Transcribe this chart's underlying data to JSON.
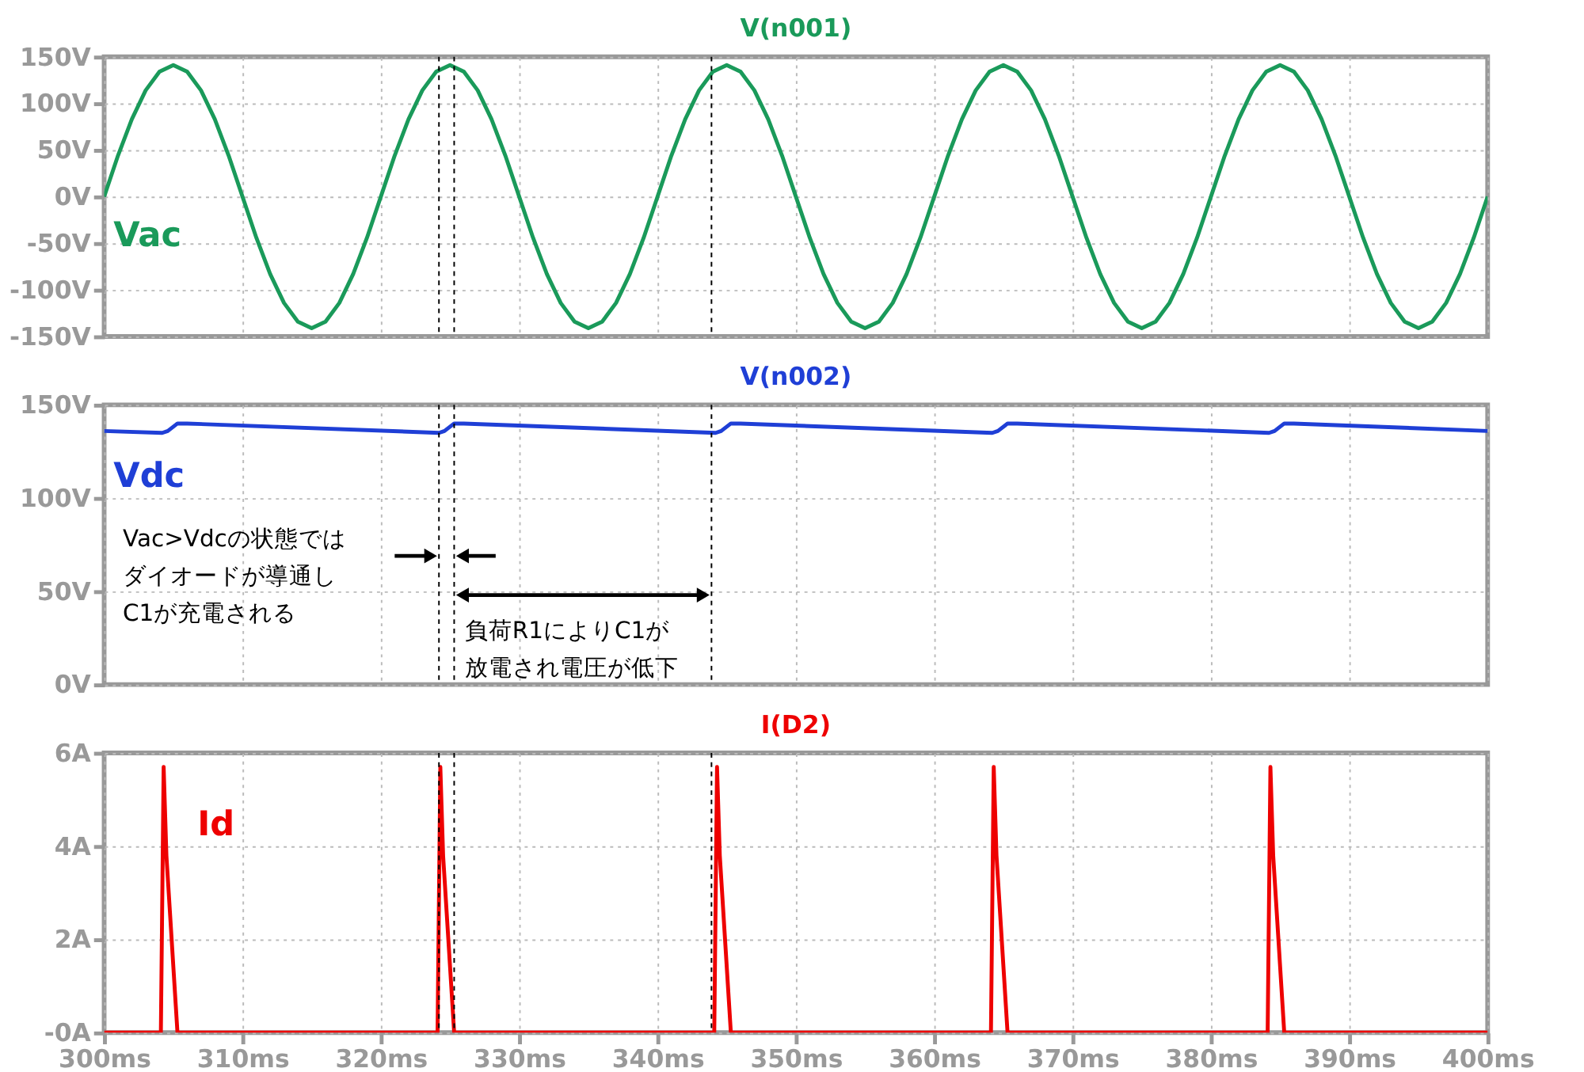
{
  "chart_data": [
    {
      "type": "line",
      "title": "V(n001)",
      "xlim": [
        300,
        400
      ],
      "ylim": [
        -150,
        150
      ],
      "grid": true,
      "tick_labels": "y",
      "xticks": [
        300,
        310,
        320,
        330,
        340,
        350,
        360,
        370,
        380,
        390,
        400
      ],
      "yticks": [
        {
          "value": 150,
          "label": "150V"
        },
        {
          "value": 100,
          "label": "100V"
        },
        {
          "value": 50,
          "label": "50V"
        },
        {
          "value": 0,
          "label": "0V"
        },
        {
          "value": -50,
          "label": "-50V"
        },
        {
          "value": -100,
          "label": "-100V"
        },
        {
          "value": -150,
          "label": "-150V"
        }
      ],
      "ref_lines": [
        {
          "axis": "x",
          "value": 324.2,
          "color": "#000000",
          "line_style": "dashed"
        },
        {
          "axis": "x",
          "value": 325.3,
          "color": "#000000",
          "line_style": "dashed"
        },
        {
          "axis": "x",
          "value": 343.9,
          "color": "#000000",
          "line_style": "dashed"
        }
      ],
      "series": [
        {
          "name": "Vac",
          "color": "#1a9a5a",
          "x": [
            300,
            301,
            302,
            303,
            304,
            305,
            306,
            307,
            308,
            309,
            310,
            311,
            312,
            313,
            314,
            315,
            316,
            317,
            318,
            319,
            320,
            321,
            322,
            323,
            324,
            325,
            326,
            327,
            328,
            329,
            330,
            331,
            332,
            333,
            334,
            335,
            336,
            337,
            338,
            339,
            340,
            341,
            342,
            343,
            344,
            345,
            346,
            347,
            348,
            349,
            350,
            351,
            352,
            353,
            354,
            355,
            356,
            357,
            358,
            359,
            360,
            361,
            362,
            363,
            364,
            365,
            366,
            367,
            368,
            369,
            370,
            371,
            372,
            373,
            374,
            375,
            376,
            377,
            378,
            379,
            380,
            381,
            382,
            383,
            384,
            385,
            386,
            387,
            388,
            389,
            390,
            391,
            392,
            393,
            394,
            395,
            396,
            397,
            398,
            399,
            400
          ],
          "values": [
            0,
            44,
            83,
            114,
            134,
            141,
            134,
            114,
            83,
            44,
            0,
            -44,
            -83,
            -114,
            -134,
            -141,
            -134,
            -114,
            -83,
            -44,
            0,
            44,
            83,
            114,
            134,
            141,
            134,
            114,
            83,
            44,
            0,
            -44,
            -83,
            -114,
            -134,
            -141,
            -134,
            -114,
            -83,
            -44,
            0,
            44,
            83,
            114,
            134,
            141,
            134,
            114,
            83,
            44,
            0,
            -44,
            -83,
            -114,
            -134,
            -141,
            -134,
            -114,
            -83,
            -44,
            0,
            44,
            83,
            114,
            134,
            141,
            134,
            114,
            83,
            44,
            0,
            -44,
            -83,
            -114,
            -134,
            -141,
            -134,
            -114,
            -83,
            -44,
            0,
            44,
            83,
            114,
            134,
            141,
            134,
            114,
            83,
            44,
            0,
            -44,
            -83,
            -114,
            -134,
            -141,
            -134,
            -114,
            -83,
            -44,
            0
          ]
        }
      ]
    },
    {
      "type": "line",
      "title": "V(n002)",
      "xlim": [
        300,
        400
      ],
      "ylim": [
        0,
        150
      ],
      "grid": true,
      "tick_labels": "y",
      "xticks": [
        300,
        310,
        320,
        330,
        340,
        350,
        360,
        370,
        380,
        390,
        400
      ],
      "yticks": [
        {
          "value": 150,
          "label": "150V"
        },
        {
          "value": 100,
          "label": "100V"
        },
        {
          "value": 50,
          "label": "50V"
        },
        {
          "value": 0,
          "label": "0V"
        }
      ],
      "ref_lines": [
        {
          "axis": "x",
          "value": 324.2,
          "color": "#000000",
          "line_style": "dashed"
        },
        {
          "axis": "x",
          "value": 325.3,
          "color": "#000000",
          "line_style": "dashed"
        },
        {
          "axis": "x",
          "value": 343.9,
          "color": "#000000",
          "line_style": "dashed"
        }
      ],
      "annotations": [
        "Vac>Vdcの状態ではダイオードが導通しC1が充電される",
        "負荷R1によりC1が放電され電圧が低下"
      ],
      "series": [
        {
          "name": "Vdc",
          "color": "#1f3fd6",
          "x": [
            300,
            304.2,
            304.6,
            305.3,
            306,
            324.2,
            324.6,
            325.3,
            326,
            344.2,
            344.6,
            345.3,
            346,
            364.2,
            364.6,
            365.3,
            366,
            384.2,
            384.6,
            385.3,
            386,
            400
          ],
          "values": [
            136,
            135,
            136,
            140,
            140,
            135,
            136,
            140,
            140,
            135,
            136,
            140,
            140,
            135,
            136,
            140,
            140,
            135,
            136,
            140,
            140,
            136
          ]
        }
      ]
    },
    {
      "type": "line",
      "title": "I(D2)",
      "xlim": [
        300,
        400
      ],
      "ylim": [
        0,
        6
      ],
      "grid": true,
      "xticks": [
        {
          "value": 300,
          "label": "300ms"
        },
        {
          "value": 310,
          "label": "310ms"
        },
        {
          "value": 320,
          "label": "320ms"
        },
        {
          "value": 330,
          "label": "330ms"
        },
        {
          "value": 340,
          "label": "340ms"
        },
        {
          "value": 350,
          "label": "350ms"
        },
        {
          "value": 360,
          "label": "360ms"
        },
        {
          "value": 370,
          "label": "370ms"
        },
        {
          "value": 380,
          "label": "380ms"
        },
        {
          "value": 390,
          "label": "390ms"
        },
        {
          "value": 400,
          "label": "400ms"
        }
      ],
      "yticks": [
        {
          "value": 6,
          "label": "6A"
        },
        {
          "value": 4,
          "label": "4A"
        },
        {
          "value": 2,
          "label": "2A"
        },
        {
          "value": 0,
          "label": "-0A"
        }
      ],
      "ref_lines": [
        {
          "axis": "x",
          "value": 324.2,
          "color": "#000000",
          "line_style": "dashed"
        },
        {
          "axis": "x",
          "value": 325.3,
          "color": "#000000",
          "line_style": "dashed"
        },
        {
          "axis": "x",
          "value": 343.9,
          "color": "#000000",
          "line_style": "dashed"
        }
      ],
      "series": [
        {
          "name": "Id",
          "color": "#ee0000",
          "x": [
            300,
            304.1,
            304.3,
            304.5,
            305.3,
            324.1,
            324.3,
            324.5,
            325.3,
            344.1,
            344.3,
            344.5,
            345.3,
            364.1,
            364.3,
            364.5,
            365.3,
            384.1,
            384.3,
            384.5,
            385.3,
            400
          ],
          "values": [
            0,
            0,
            5.7,
            3.8,
            0,
            0,
            5.7,
            3.8,
            0,
            0,
            5.7,
            3.8,
            0,
            0,
            5.7,
            3.8,
            0,
            0,
            5.7,
            3.8,
            0,
            0
          ]
        }
      ]
    }
  ]
}
